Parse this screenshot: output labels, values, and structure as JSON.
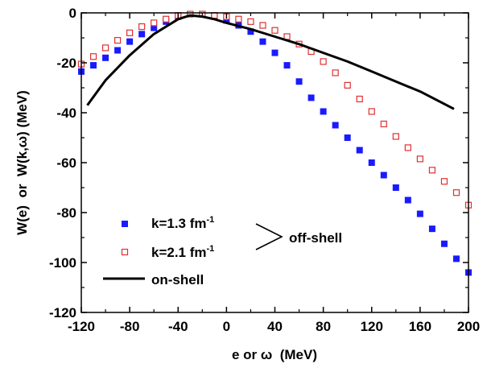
{
  "chart_data": {
    "type": "scatter",
    "xlabel": "e or ω  (MeV)",
    "ylabel": "W(e)  or  W(k,ω) (MeV)",
    "xlim": [
      -120,
      200
    ],
    "ylim": [
      -120,
      0
    ],
    "xticks": [
      -120,
      -80,
      -40,
      0,
      40,
      80,
      120,
      160,
      200
    ],
    "yticks": [
      0,
      -20,
      -40,
      -60,
      -80,
      -100,
      -120
    ],
    "xtick_labels": [
      "-120",
      "-80",
      "-40",
      "0",
      "40",
      "80",
      "120",
      "160",
      "200"
    ],
    "ytick_labels": [
      "0",
      "-20",
      "-40",
      "-60",
      "-80",
      "-100",
      "-120"
    ],
    "grid": false,
    "legend_position": "bottom-left",
    "series": [
      {
        "name": "k=1.3 fm-1",
        "marker": "filled-square",
        "color": "#1a1aff",
        "x": [
          -120,
          -110,
          -100,
          -90,
          -80,
          -70,
          -60,
          -50,
          -40,
          -30,
          -20,
          -10,
          0,
          10,
          20,
          30,
          40,
          50,
          60,
          70,
          80,
          90,
          100,
          110,
          120,
          130,
          140,
          150,
          160,
          170,
          180,
          190,
          200
        ],
        "y": [
          -23.5,
          -21,
          -18,
          -15,
          -11.5,
          -8.5,
          -6,
          -3.5,
          -1.5,
          -0.5,
          -0.5,
          -1.5,
          -3,
          -5,
          -7.5,
          -11.5,
          -16,
          -21,
          -27.5,
          -34,
          -39.5,
          -45,
          -50,
          -55,
          -60,
          -65,
          -70,
          -75,
          -80.5,
          -86.5,
          -92.5,
          -98.5,
          -104
        ]
      },
      {
        "name": "k=2.1 fm-1",
        "marker": "open-square",
        "color": "#e03030",
        "x": [
          -120,
          -110,
          -100,
          -90,
          -80,
          -70,
          -60,
          -50,
          -40,
          -30,
          -20,
          -10,
          0,
          10,
          20,
          30,
          40,
          50,
          60,
          70,
          80,
          90,
          100,
          110,
          120,
          130,
          140,
          150,
          160,
          170,
          180,
          190,
          200
        ],
        "y": [
          -20.5,
          -17.5,
          -14,
          -11,
          -8,
          -5.5,
          -4,
          -2.5,
          -1,
          -0.5,
          -0.5,
          -1,
          -1.5,
          -2.5,
          -3.5,
          -5,
          -7,
          -9.5,
          -12.5,
          -15.5,
          -19.5,
          -24,
          -29,
          -34.5,
          -39.5,
          -44.5,
          -49.5,
          -54,
          -58.5,
          -63,
          -67.5,
          -72,
          -77
        ]
      },
      {
        "name": "on-shell",
        "marker": "line",
        "color": "#000000",
        "x": [
          -115,
          -100,
          -80,
          -60,
          -40,
          -30,
          -20,
          -10,
          0,
          20,
          40,
          60,
          80,
          100,
          120,
          140,
          160,
          188
        ],
        "y": [
          -37,
          -27,
          -17,
          -8.5,
          -2.5,
          -1,
          -1.5,
          -2.5,
          -4,
          -6.5,
          -9.5,
          -12.5,
          -16,
          -19.5,
          -23.5,
          -27.5,
          -31.5,
          -38.5
        ]
      }
    ],
    "annotation": "off-shell"
  },
  "legend": {
    "item1": {
      "prefix": "k=1.3 fm",
      "sup": "-1"
    },
    "item2": {
      "prefix": "k=2.1 fm",
      "sup": "-1"
    },
    "item3": "on-shell",
    "bracket_label": "off-shell"
  }
}
